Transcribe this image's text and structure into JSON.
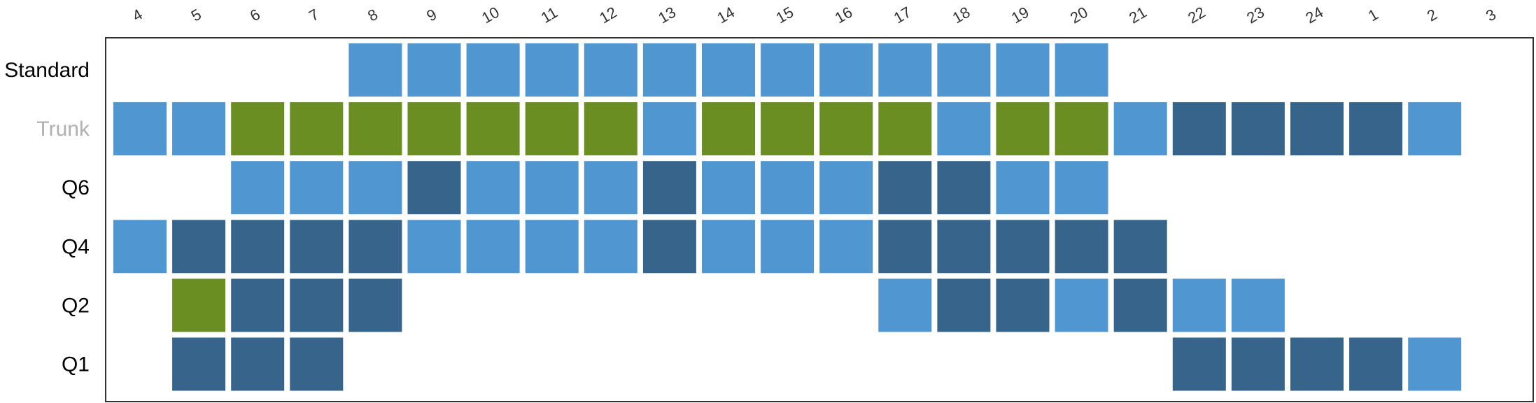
{
  "chart_data": {
    "type": "heatmap",
    "title": "",
    "xlabel": "",
    "ylabel": "",
    "columns": [
      "4",
      "5",
      "6",
      "7",
      "8",
      "9",
      "10",
      "11",
      "12",
      "13",
      "14",
      "15",
      "16",
      "17",
      "18",
      "19",
      "20",
      "21",
      "22",
      "23",
      "24",
      "1",
      "2",
      "3"
    ],
    "rows": [
      "Standard",
      "Trunk",
      "Q6",
      "Q4",
      "Q2",
      "Q1"
    ],
    "row_label_colors": {
      "Standard": "#000000",
      "Trunk": "#b0b0b0",
      "Q6": "#000000",
      "Q4": "#000000",
      "Q2": "#000000",
      "Q1": "#000000"
    },
    "categories": {
      "L": "#5096d0",
      "D": "#36648b",
      "G": "#6b8e23"
    },
    "cells": [
      [
        "",
        "",
        "",
        "",
        "L",
        "L",
        "L",
        "L",
        "L",
        "L",
        "L",
        "L",
        "L",
        "L",
        "L",
        "L",
        "L",
        "",
        "",
        "",
        "",
        "",
        "",
        ""
      ],
      [
        "L",
        "L",
        "G",
        "G",
        "G",
        "G",
        "G",
        "G",
        "G",
        "L",
        "G",
        "G",
        "G",
        "G",
        "L",
        "G",
        "G",
        "L",
        "D",
        "D",
        "D",
        "D",
        "L",
        ""
      ],
      [
        "",
        "",
        "L",
        "L",
        "L",
        "D",
        "L",
        "L",
        "L",
        "D",
        "L",
        "L",
        "L",
        "D",
        "D",
        "L",
        "L",
        "",
        "",
        "",
        "",
        "",
        "",
        ""
      ],
      [
        "L",
        "D",
        "D",
        "D",
        "D",
        "L",
        "L",
        "L",
        "L",
        "D",
        "L",
        "L",
        "L",
        "D",
        "D",
        "D",
        "D",
        "D",
        "",
        "",
        "",
        "",
        "",
        ""
      ],
      [
        "",
        "G",
        "D",
        "D",
        "D",
        "",
        "",
        "",
        "",
        "",
        "",
        "",
        "",
        "L",
        "D",
        "D",
        "L",
        "D",
        "L",
        "L",
        "",
        "",
        "",
        ""
      ],
      [
        "",
        "D",
        "D",
        "D",
        "",
        "",
        "",
        "",
        "",
        "",
        "",
        "",
        "",
        "",
        "",
        "",
        "",
        "",
        "D",
        "D",
        "D",
        "D",
        "L",
        ""
      ]
    ]
  }
}
